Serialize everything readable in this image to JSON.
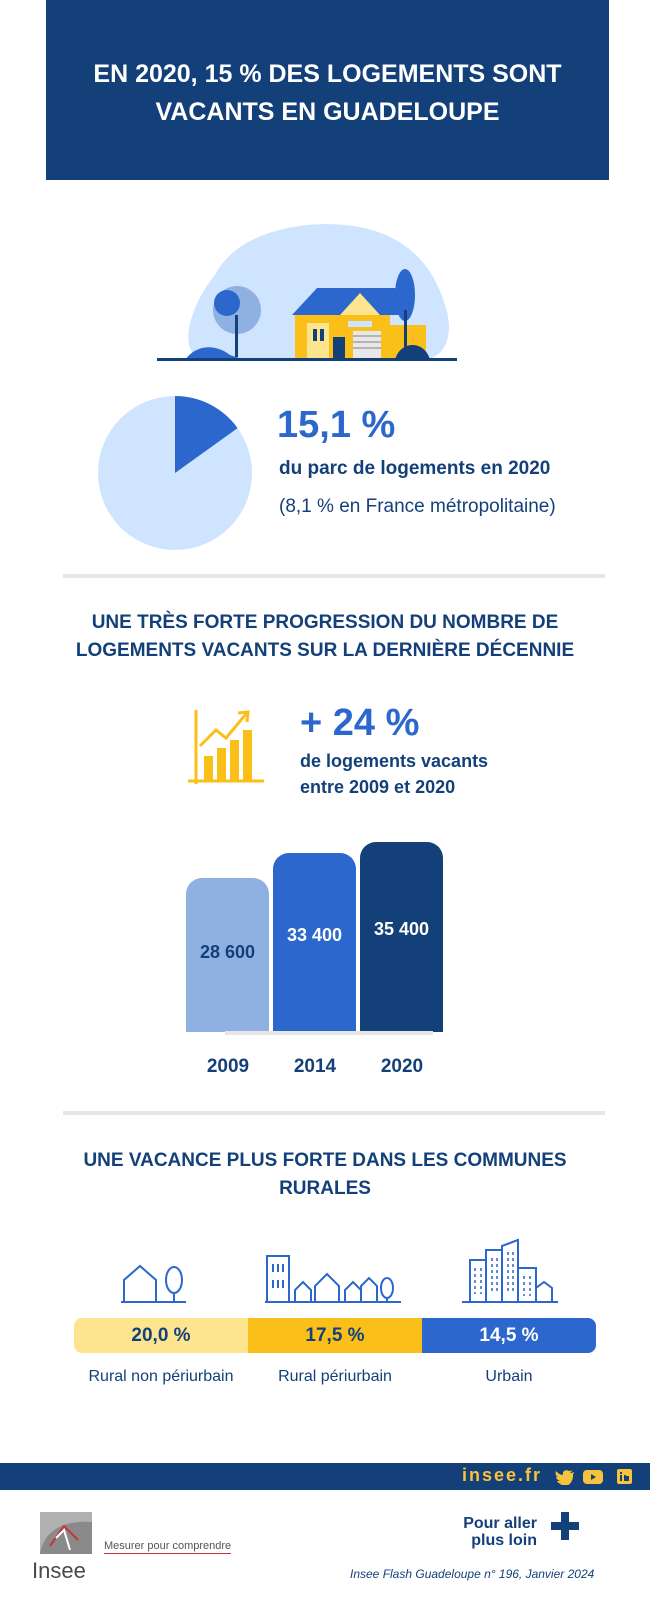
{
  "header": {
    "title_line1": "EN 2020, 15 % DES LOGEMENTS SONT",
    "title_line2": "VACANTS EN GUADELOUPE"
  },
  "vacancy": {
    "value": "15,1 %",
    "subtitle": "du parc de logements en 2020",
    "note": "(8,1 % en France métropolitaine)"
  },
  "section2": {
    "title_line1": "UNE TRÈS FORTE PROGRESSION DU NOMBRE DE",
    "title_line2": "LOGEMENTS VACANTS SUR LA DERNIÈRE DÉCENNIE",
    "growth_value": "+ 24 %",
    "growth_line1": "de logements vacants",
    "growth_line2": "entre 2009 et 2020"
  },
  "chart_data": {
    "type": "bar",
    "categories": [
      "2009",
      "2014",
      "2020"
    ],
    "values": [
      28600,
      33400,
      35400
    ],
    "labels": [
      "28 600",
      "33 400",
      "35 400"
    ],
    "colors": [
      "#8fb1e2",
      "#2b67cc",
      "#14407a"
    ],
    "title": "",
    "xlabel": "",
    "ylabel": ""
  },
  "pie_data": {
    "type": "pie",
    "values": [
      15.1,
      84.9
    ],
    "colors": [
      "#2b67cc",
      "#cfe4ff"
    ]
  },
  "section3": {
    "title_line1": "UNE VACANCE PLUS FORTE DANS LES COMMUNES",
    "title_line2": "RURALES",
    "segments": [
      {
        "value": "20,0 %",
        "label": "Rural non périurbain",
        "color": "#fde58f"
      },
      {
        "value": "17,5 %",
        "label": "Rural périurbain",
        "color": "#fbbf1a"
      },
      {
        "value": "14,5 %",
        "label": "Urbain",
        "color": "#2b67cc"
      }
    ]
  },
  "footer": {
    "site": "insee.fr",
    "logo_text": "Insee",
    "tagline": "Mesurer pour comprendre",
    "more_line1": "Pour aller",
    "more_line2": "plus loin",
    "reference": "Insee Flash Guadeloupe n° 196, Janvier 2024"
  }
}
